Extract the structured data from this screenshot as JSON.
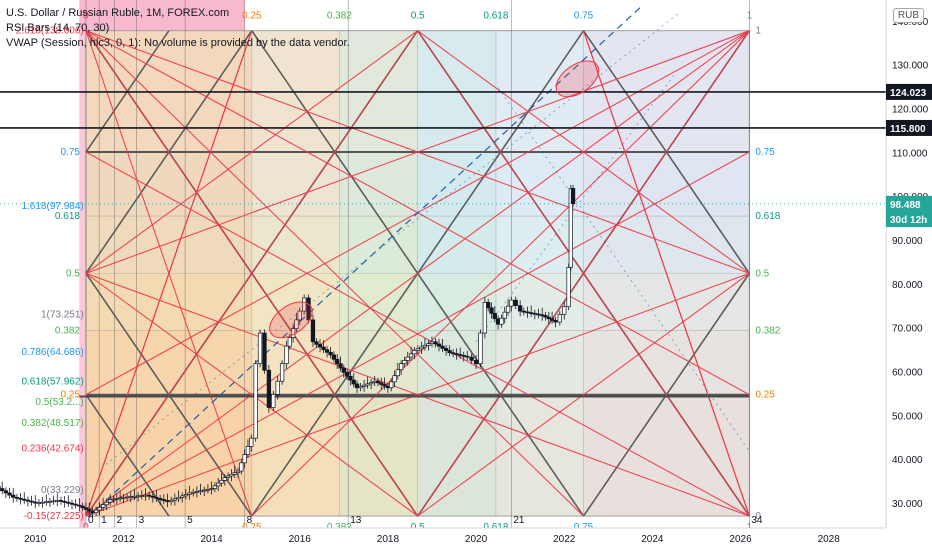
{
  "legend": {
    "title": "U.S. Dollar / Russian Ruble, 1M, FOREX.com",
    "rsi": "RSI Bars (14, 70, 30)",
    "vwap": "VWAP (Session, hlc3, 0, 1): No volume is provided by the data vendor."
  },
  "currency_button": "RUB",
  "price_labels": [
    {
      "text": "124.023",
      "value": 124.023,
      "bg": "#131722",
      "fg": "#ffffff"
    },
    {
      "text": "115.800",
      "value": 115.8,
      "bg": "#131722",
      "fg": "#ffffff"
    },
    {
      "text": "98.488",
      "value": 98.488,
      "bg": "#26a69a",
      "fg": "#ffffff"
    },
    {
      "text": "30d 12h",
      "value": 95.0,
      "bg": "#26a69a",
      "fg": "#ffffff"
    }
  ],
  "chart_data": {
    "type": "candlestick",
    "symbol": "USDRUB",
    "timeframe": "1M",
    "x_axis": {
      "min": 2009.2,
      "max": 2029.3,
      "ticks": [
        "2010",
        "2012",
        "2014",
        "2016",
        "2018",
        "2020",
        "2022",
        "2024",
        "2026",
        "2028"
      ],
      "tick_values": [
        2010,
        2012,
        2014,
        2016,
        2018,
        2020,
        2022,
        2024,
        2026,
        2028
      ]
    },
    "y_axis": {
      "min": 24.5,
      "max": 145,
      "side": "right",
      "ticks": [
        "30.000",
        "40.000",
        "50.000",
        "60.000",
        "70.000",
        "80.000",
        "90.000",
        "100.000",
        "110.000",
        "120.000",
        "130.000",
        "140.000"
      ],
      "tick_values": [
        30,
        40,
        50,
        60,
        70,
        80,
        90,
        100,
        110,
        120,
        130,
        140
      ]
    },
    "horizontal_lines": [
      124.023,
      115.8
    ],
    "price_series": [
      [
        2009.0,
        34.5
      ],
      [
        2009.5,
        31.5
      ],
      [
        2010.0,
        30.2
      ],
      [
        2010.5,
        30.8
      ],
      [
        2011.0,
        29.5
      ],
      [
        2011.3,
        28.0
      ],
      [
        2011.7,
        31.0
      ],
      [
        2012.0,
        31.5
      ],
      [
        2012.5,
        32.0
      ],
      [
        2013.0,
        30.5
      ],
      [
        2013.5,
        32.5
      ],
      [
        2014.0,
        33.5
      ],
      [
        2014.3,
        36.0
      ],
      [
        2014.6,
        37.5
      ],
      [
        2014.9,
        45.0
      ],
      [
        2015.0,
        62.0
      ],
      [
        2015.1,
        69.0
      ],
      [
        2015.3,
        52.0
      ],
      [
        2015.5,
        58.0
      ],
      [
        2015.7,
        66.0
      ],
      [
        2016.0,
        74.0
      ],
      [
        2016.1,
        77.0
      ],
      [
        2016.3,
        67.0
      ],
      [
        2016.7,
        64.0
      ],
      [
        2017.0,
        60.0
      ],
      [
        2017.3,
        56.5
      ],
      [
        2017.7,
        58.0
      ],
      [
        2018.0,
        56.5
      ],
      [
        2018.3,
        62.0
      ],
      [
        2018.6,
        65.0
      ],
      [
        2019.0,
        67.0
      ],
      [
        2019.4,
        64.5
      ],
      [
        2019.8,
        63.5
      ],
      [
        2020.0,
        62.0
      ],
      [
        2020.2,
        76.0
      ],
      [
        2020.5,
        71.0
      ],
      [
        2020.8,
        76.5
      ],
      [
        2021.0,
        74.0
      ],
      [
        2021.5,
        73.0
      ],
      [
        2021.8,
        71.5
      ],
      [
        2022.0,
        75.0
      ],
      [
        2022.1,
        84.0
      ],
      [
        2022.15,
        102.0
      ],
      [
        2022.2,
        98.488
      ]
    ],
    "left_fib_labels": [
      {
        "text": "2.618(138.006)",
        "value": 138.006,
        "color": "#f23645"
      },
      {
        "text": "1.618(97.984)",
        "value": 97.984,
        "color": "#2196f3"
      },
      {
        "text": "1(73.251)",
        "value": 73.251,
        "color": "#787b86"
      },
      {
        "text": "0.786(64.686)",
        "value": 64.686,
        "color": "#2196f3"
      },
      {
        "text": "0.618(57.962)",
        "value": 57.962,
        "color": "#089981"
      },
      {
        "text": "0.5(53.2...)",
        "value": 53.2,
        "color": "#4caf50"
      },
      {
        "text": "0.382(48.517)",
        "value": 48.517,
        "color": "#4caf50"
      },
      {
        "text": "0.236(42.674)",
        "value": 42.674,
        "color": "#f23645"
      },
      {
        "text": "0(33.229)",
        "value": 33.229,
        "color": "#787b86"
      },
      {
        "text": "-0.15(27.225)",
        "value": 27.225,
        "color": "#f23645"
      }
    ],
    "fib_time_labels": [
      "0",
      "1",
      "2",
      "3",
      "5",
      "8",
      "13",
      "21",
      "34"
    ],
    "fib_time_values": [
      2011.15,
      2011.45,
      2011.8,
      2012.3,
      2013.4,
      2014.75,
      2017.1,
      2020.8,
      2026.2
    ],
    "gann_box": {
      "x_start": 2011.15,
      "x_end": 2026.2,
      "y_bottom": 27.225,
      "y_top": 138.0,
      "levels": [
        "0",
        "0.25",
        "0.382",
        "0.5",
        "0.618",
        "0.75",
        "1"
      ],
      "left_levels": [
        "0.75",
        "0.618",
        "0.5",
        "0.382",
        "0.25"
      ],
      "right_levels": [
        "1",
        "0.75",
        "0.618",
        "0.5",
        "0.382",
        "0.25",
        "0"
      ]
    },
    "annotations": [
      {
        "type": "ellipse",
        "x": 2015.8,
        "y": 72,
        "color": "#f23645"
      },
      {
        "type": "ellipse",
        "x": 2022.3,
        "y": 127,
        "color": "#f23645"
      }
    ]
  }
}
